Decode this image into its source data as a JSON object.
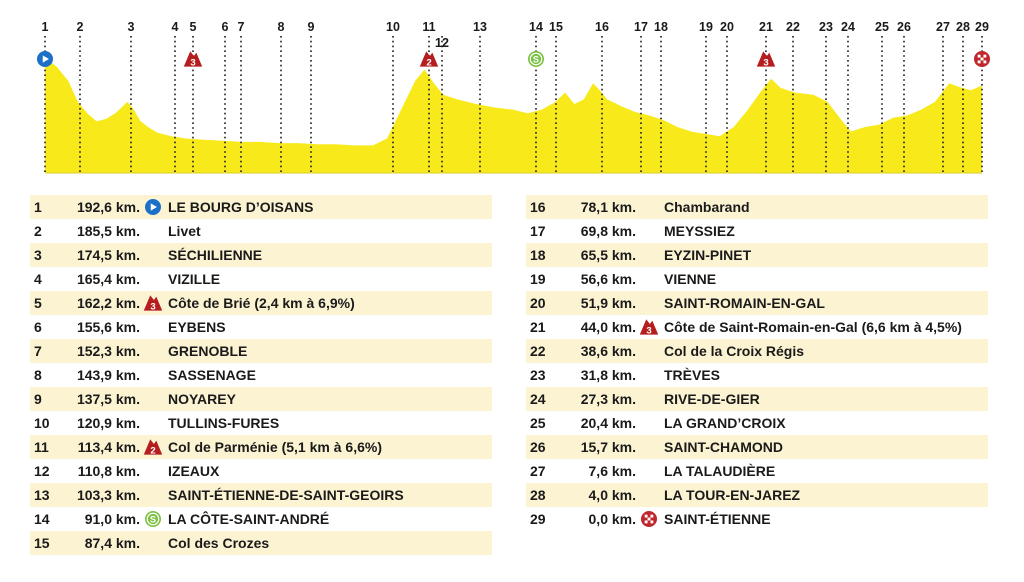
{
  "colors": {
    "profile_fill": "#f8ea1a",
    "row_shade": "#fbf3d2",
    "start_marker": "#1c70c7",
    "climb_marker": "#b51d1f",
    "sprint_marker": "#7bc142",
    "finish_marker": "#c0262e"
  },
  "chart_data": {
    "type": "area",
    "title": "",
    "xlabel": "",
    "ylabel": "",
    "checkpoints": [
      "1",
      "2",
      "3",
      "4",
      "5",
      "6",
      "7",
      "8",
      "9",
      "10",
      "11",
      "12",
      "13",
      "14",
      "15",
      "16",
      "17",
      "18",
      "19",
      "20",
      "21",
      "22",
      "23",
      "24",
      "25",
      "26",
      "27",
      "28",
      "29"
    ],
    "markers": [
      {
        "checkpoint": "1",
        "icon": "start-icon"
      },
      {
        "checkpoint": "5",
        "icon": "climb-icon",
        "label": "3"
      },
      {
        "checkpoint": "11",
        "icon": "climb-icon",
        "label": "2"
      },
      {
        "checkpoint": "14",
        "icon": "sprint-icon",
        "label": "S"
      },
      {
        "checkpoint": "21",
        "icon": "climb-icon",
        "label": "3"
      },
      {
        "checkpoint": "29",
        "icon": "finish-icon"
      }
    ],
    "profile_relative_height": [
      [
        0,
        0.95
      ],
      [
        0.4,
        0.98
      ],
      [
        1.3,
        0.92
      ],
      [
        2.5,
        0.8
      ],
      [
        3.5,
        0.62
      ],
      [
        4.5,
        0.52
      ],
      [
        5.5,
        0.45
      ],
      [
        6.5,
        0.47
      ],
      [
        7.5,
        0.52
      ],
      [
        8.3,
        0.58
      ],
      [
        8.8,
        0.62
      ],
      [
        9.4,
        0.56
      ],
      [
        10.2,
        0.45
      ],
      [
        11.0,
        0.4
      ],
      [
        12,
        0.35
      ],
      [
        13.5,
        0.32
      ],
      [
        15,
        0.3
      ],
      [
        17,
        0.29
      ],
      [
        19,
        0.28
      ],
      [
        21,
        0.27
      ],
      [
        23,
        0.27
      ],
      [
        25,
        0.26
      ],
      [
        27,
        0.26
      ],
      [
        29,
        0.25
      ],
      [
        31,
        0.25
      ],
      [
        33,
        0.24
      ],
      [
        35,
        0.24
      ],
      [
        36.5,
        0.3
      ],
      [
        38,
        0.55
      ],
      [
        39.5,
        0.8
      ],
      [
        40.5,
        0.9
      ],
      [
        41.5,
        0.78
      ],
      [
        42.5,
        0.68
      ],
      [
        44,
        0.64
      ],
      [
        46,
        0.6
      ],
      [
        48,
        0.57
      ],
      [
        50,
        0.55
      ],
      [
        51.5,
        0.52
      ],
      [
        53,
        0.55
      ],
      [
        54.5,
        0.62
      ],
      [
        55.5,
        0.7
      ],
      [
        56.5,
        0.6
      ],
      [
        57.5,
        0.64
      ],
      [
        58.5,
        0.78
      ],
      [
        59.2,
        0.72
      ],
      [
        60,
        0.64
      ],
      [
        61.5,
        0.58
      ],
      [
        63,
        0.53
      ],
      [
        64.5,
        0.5
      ],
      [
        66,
        0.46
      ],
      [
        67.5,
        0.4
      ],
      [
        69,
        0.36
      ],
      [
        70.5,
        0.34
      ],
      [
        72,
        0.32
      ],
      [
        73.5,
        0.4
      ],
      [
        75,
        0.55
      ],
      [
        76.5,
        0.72
      ],
      [
        77.5,
        0.82
      ],
      [
        78.5,
        0.74
      ],
      [
        80,
        0.7
      ],
      [
        82,
        0.68
      ],
      [
        83.5,
        0.62
      ],
      [
        85,
        0.46
      ],
      [
        86,
        0.36
      ],
      [
        87.5,
        0.4
      ],
      [
        89,
        0.42
      ],
      [
        90.5,
        0.48
      ],
      [
        92,
        0.5
      ],
      [
        93.5,
        0.55
      ],
      [
        95,
        0.62
      ],
      [
        96.5,
        0.78
      ],
      [
        97.5,
        0.75
      ],
      [
        98.8,
        0.72
      ],
      [
        100,
        0.76
      ]
    ]
  },
  "stages_left": [
    {
      "num": "1",
      "km": "192,6 km.",
      "icon": "start-icon",
      "name": "LE BOURG D’OISANS"
    },
    {
      "num": "2",
      "km": "185,5 km.",
      "icon": "",
      "name": "Livet"
    },
    {
      "num": "3",
      "km": "174,5 km.",
      "icon": "",
      "name": "SÉCHILIENNE"
    },
    {
      "num": "4",
      "km": "165,4 km.",
      "icon": "",
      "name": "VIZILLE"
    },
    {
      "num": "5",
      "km": "162,2 km.",
      "icon": "climb-icon",
      "icon_label": "3",
      "name": "Côte de Brié (2,4 km à 6,9%)"
    },
    {
      "num": "6",
      "km": "155,6 km.",
      "icon": "",
      "name": "EYBENS"
    },
    {
      "num": "7",
      "km": "152,3 km.",
      "icon": "",
      "name": "GRENOBLE"
    },
    {
      "num": "8",
      "km": "143,9 km.",
      "icon": "",
      "name": "SASSENAGE"
    },
    {
      "num": "9",
      "km": "137,5 km.",
      "icon": "",
      "name": "NOYAREY"
    },
    {
      "num": "10",
      "km": "120,9 km.",
      "icon": "",
      "name": "TULLINS-FURES"
    },
    {
      "num": "11",
      "km": "113,4 km.",
      "icon": "climb-icon",
      "icon_label": "2",
      "name": "Col de Parménie (5,1 km à 6,6%)"
    },
    {
      "num": "12",
      "km": "110,8 km.",
      "icon": "",
      "name": "IZEAUX"
    },
    {
      "num": "13",
      "km": "103,3 km.",
      "icon": "",
      "name": "SAINT-ÉTIENNE-DE-SAINT-GEOIRS"
    },
    {
      "num": "14",
      "km": "91,0 km.",
      "icon": "sprint-icon",
      "icon_label": "S",
      "name": "LA CÔTE-SAINT-ANDRÉ"
    },
    {
      "num": "15",
      "km": "87,4 km.",
      "icon": "",
      "name": "Col des Crozes"
    }
  ],
  "stages_right": [
    {
      "num": "16",
      "km": "78,1 km.",
      "icon": "",
      "name": "Chambarand"
    },
    {
      "num": "17",
      "km": "69,8 km.",
      "icon": "",
      "name": "MEYSSIEZ"
    },
    {
      "num": "18",
      "km": "65,5 km.",
      "icon": "",
      "name": "EYZIN-PINET"
    },
    {
      "num": "19",
      "km": "56,6 km.",
      "icon": "",
      "name": "VIENNE"
    },
    {
      "num": "20",
      "km": "51,9 km.",
      "icon": "",
      "name": "SAINT-ROMAIN-EN-GAL"
    },
    {
      "num": "21",
      "km": "44,0 km.",
      "icon": "climb-icon",
      "icon_label": "3",
      "name": "Côte de Saint-Romain-en-Gal (6,6 km à 4,5%)"
    },
    {
      "num": "22",
      "km": "38,6 km.",
      "icon": "",
      "name": "Col de la Croix Régis"
    },
    {
      "num": "23",
      "km": "31,8 km.",
      "icon": "",
      "name": "TRÈVES"
    },
    {
      "num": "24",
      "km": "27,3 km.",
      "icon": "",
      "name": "RIVE-DE-GIER"
    },
    {
      "num": "25",
      "km": "20,4 km.",
      "icon": "",
      "name": "LA GRAND’CROIX"
    },
    {
      "num": "26",
      "km": "15,7 km.",
      "icon": "",
      "name": "SAINT-CHAMOND"
    },
    {
      "num": "27",
      "km": "7,6 km.",
      "icon": "",
      "name": "LA TALAUDIÈRE"
    },
    {
      "num": "28",
      "km": "4,0 km.",
      "icon": "",
      "name": "LA TOUR-EN-JAREZ"
    },
    {
      "num": "29",
      "km": "0,0 km.",
      "icon": "finish-icon",
      "name": "SAINT-ÉTIENNE"
    }
  ]
}
